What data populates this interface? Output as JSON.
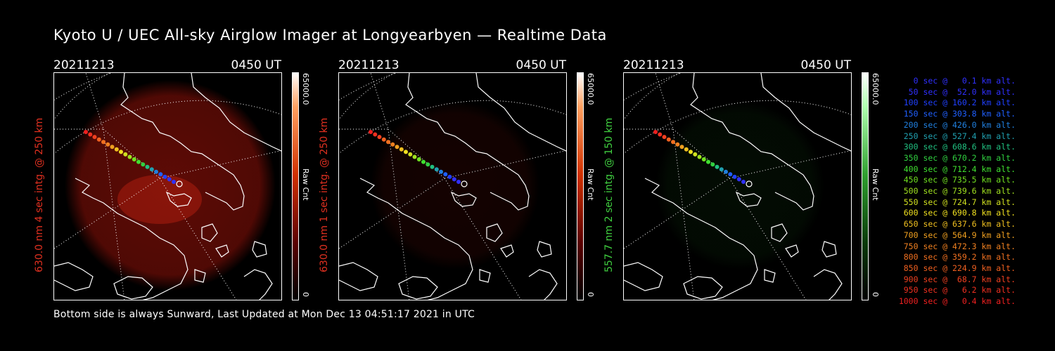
{
  "title": "Kyoto U / UEC All-sky Airglow Imager at Longyearbyen — Realtime Data",
  "footer": "Bottom side is always Sunward, Last Updated at Mon Dec 13 04:51:17 2021 in UTC",
  "panels": [
    {
      "date": "20211213",
      "time": "0450 UT",
      "ylabel": "630.0 nm 4 sec intg. @ 250 km",
      "ylabel_color": "#e03020",
      "colorbar_max": "65000.0",
      "colorbar_min": "0",
      "colorbar_label": "Raw Cnt",
      "color_scale": "red",
      "glow_level": "bright"
    },
    {
      "date": "20211213",
      "time": "0450 UT",
      "ylabel": "630.0 nm 1 sec intg. @ 250 km",
      "ylabel_color": "#e03020",
      "colorbar_max": "65000.0",
      "colorbar_min": "0",
      "colorbar_label": "Raw Cnt",
      "color_scale": "red",
      "glow_level": "dim"
    },
    {
      "date": "20211213",
      "time": "0450 UT",
      "ylabel": "557.7 nm 2 sec intg. @ 150 km",
      "ylabel_color": "#40d040",
      "colorbar_max": "65000.0",
      "colorbar_min": "0",
      "colorbar_label": "Raw Cnt",
      "color_scale": "green",
      "glow_level": "faint"
    }
  ],
  "legend": [
    {
      "text": "0 sec @   0.1 km alt.",
      "color": "#3030ff"
    },
    {
      "text": "50 sec @  52.0 km alt.",
      "color": "#3030ff"
    },
    {
      "text": "100 sec @ 160.2 km alt.",
      "color": "#2040ff"
    },
    {
      "text": "150 sec @ 303.8 km alt.",
      "color": "#2060ff"
    },
    {
      "text": "200 sec @ 426.0 km alt.",
      "color": "#2080e0"
    },
    {
      "text": "250 sec @ 527.4 km alt.",
      "color": "#20a0b0"
    },
    {
      "text": "300 sec @ 608.6 km alt.",
      "color": "#20c080"
    },
    {
      "text": "350 sec @ 670.2 km alt.",
      "color": "#30d040"
    },
    {
      "text": "400 sec @ 712.4 km alt.",
      "color": "#40e030"
    },
    {
      "text": "450 sec @ 735.5 km alt.",
      "color": "#70e020"
    },
    {
      "text": "500 sec @ 739.6 km alt.",
      "color": "#a0e020"
    },
    {
      "text": "550 sec @ 724.7 km alt.",
      "color": "#d0e020"
    },
    {
      "text": "600 sec @ 690.8 km alt.",
      "color": "#f0e020"
    },
    {
      "text": "650 sec @ 637.6 km alt.",
      "color": "#f0c020"
    },
    {
      "text": "700 sec @ 564.9 km alt.",
      "color": "#f0a020"
    },
    {
      "text": "750 sec @ 472.3 km alt.",
      "color": "#f08020"
    },
    {
      "text": "800 sec @ 359.2 km alt.",
      "color": "#f07020"
    },
    {
      "text": "850 sec @ 224.9 km alt.",
      "color": "#f06020"
    },
    {
      "text": "900 sec @  68.7 km alt.",
      "color": "#f04020"
    },
    {
      "text": "950 sec @   6.2 km alt.",
      "color": "#f03020"
    },
    {
      "text": "1000 sec @   0.4 km alt.",
      "color": "#f02020"
    }
  ]
}
